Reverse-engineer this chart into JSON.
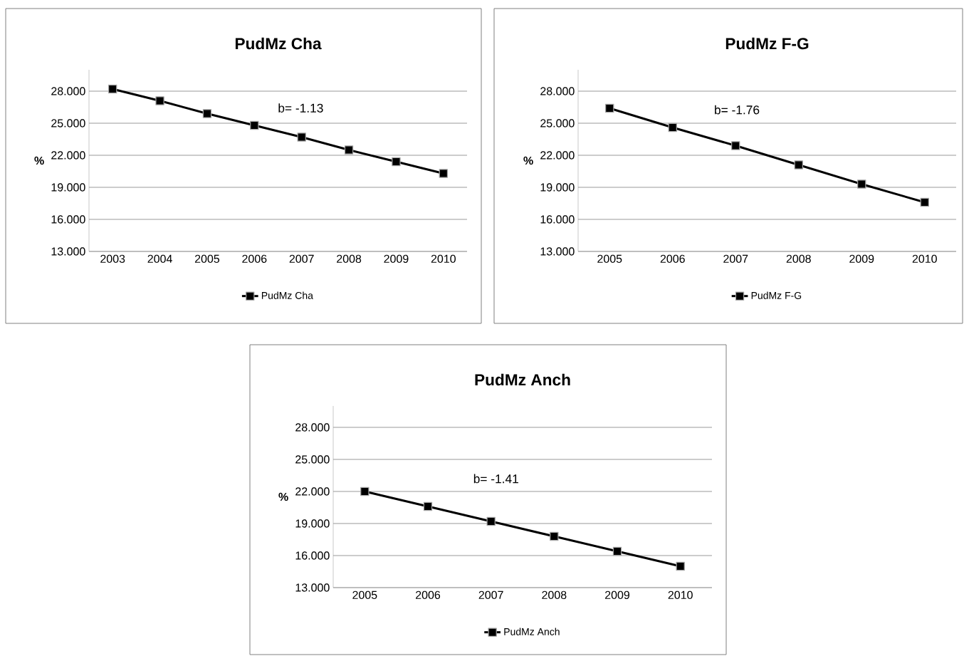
{
  "chart_data": [
    {
      "type": "line",
      "title": "PudMz Cha",
      "ylabel": "%",
      "categories": [
        "2003",
        "2004",
        "2005",
        "2006",
        "2007",
        "2008",
        "2009",
        "2010"
      ],
      "series": [
        {
          "name": "PudMz Cha",
          "color": "#000000",
          "values": [
            28.2,
            27.1,
            25.9,
            24.8,
            23.7,
            22.5,
            21.4,
            20.3
          ]
        }
      ],
      "ylim": [
        13,
        30
      ],
      "yticks": [
        {
          "value": 13,
          "label": "13.000"
        },
        {
          "value": 16,
          "label": "16.000"
        },
        {
          "value": 19,
          "label": "19.000"
        },
        {
          "value": 22,
          "label": "22.000"
        },
        {
          "value": 25,
          "label": "25.000"
        },
        {
          "value": 28,
          "label": "28.000"
        }
      ],
      "grid": "y",
      "legend": "bottom",
      "marker": "square",
      "line_style": "solid",
      "annotations": [
        "b= -1.13"
      ]
    },
    {
      "type": "line",
      "title": "PudMz F-G",
      "ylabel": "%",
      "categories": [
        "2005",
        "2006",
        "2007",
        "2008",
        "2009",
        "2010"
      ],
      "series": [
        {
          "name": "PudMz F-G",
          "color": "#000000",
          "values": [
            26.4,
            24.6,
            22.9,
            21.1,
            19.3,
            17.6
          ]
        }
      ],
      "ylim": [
        13,
        30
      ],
      "yticks": [
        {
          "value": 13,
          "label": "13.000"
        },
        {
          "value": 16,
          "label": "16.000"
        },
        {
          "value": 19,
          "label": "19.000"
        },
        {
          "value": 22,
          "label": "22.000"
        },
        {
          "value": 25,
          "label": "25.000"
        },
        {
          "value": 28,
          "label": "28.000"
        }
      ],
      "grid": "y",
      "legend": "bottom",
      "marker": "square",
      "line_style": "solid",
      "annotations": [
        "b= -1.76"
      ]
    },
    {
      "type": "line",
      "title": "PudMz Anch",
      "ylabel": "%",
      "categories": [
        "2005",
        "2006",
        "2007",
        "2008",
        "2009",
        "2010"
      ],
      "series": [
        {
          "name": "PudMz Anch",
          "color": "#000000",
          "values": [
            22.0,
            20.6,
            19.2,
            17.8,
            16.4,
            15.0
          ]
        }
      ],
      "ylim": [
        13,
        30
      ],
      "yticks": [
        {
          "value": 13,
          "label": "13.000"
        },
        {
          "value": 16,
          "label": "16.000"
        },
        {
          "value": 19,
          "label": "19.000"
        },
        {
          "value": 22,
          "label": "22.000"
        },
        {
          "value": 25,
          "label": "25.000"
        },
        {
          "value": 28,
          "label": "28.000"
        }
      ],
      "grid": "y",
      "legend": "bottom",
      "marker": "square",
      "line_style": "solid",
      "annotations": [
        "b= -1.41"
      ]
    }
  ]
}
